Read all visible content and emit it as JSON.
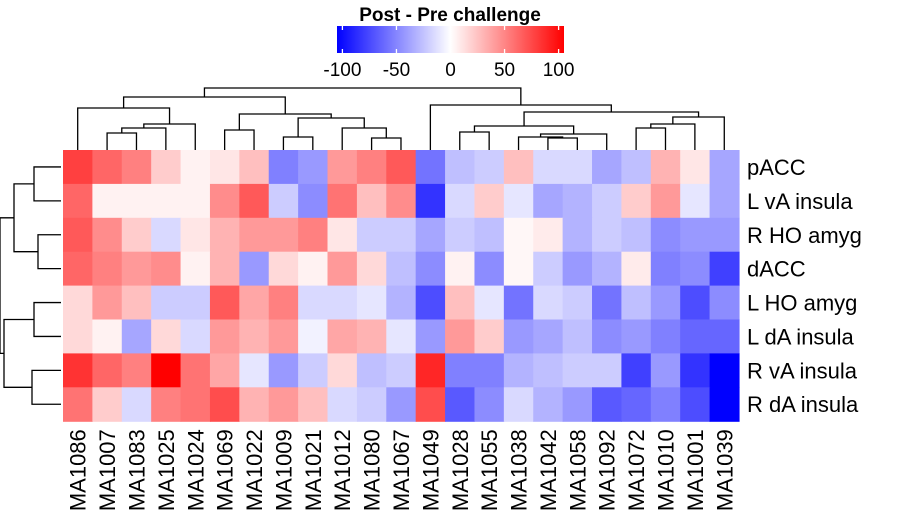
{
  "chart_data": {
    "type": "heatmap",
    "title": "Post - Pre challenge",
    "legend": {
      "title": "Post - Pre challenge",
      "ticks": [
        -100,
        -50,
        0,
        50,
        100
      ],
      "tick_labels": [
        "-100",
        "-50",
        "0",
        "50",
        "100"
      ],
      "range": [
        -105,
        105
      ],
      "colors": {
        "low": "#0000ff",
        "mid": "#ffffff",
        "high": "#ff0000"
      },
      "placement": "top-center"
    },
    "columns": [
      "MA1086",
      "MA1007",
      "MA1083",
      "MA1025",
      "MA1024",
      "MA1069",
      "MA1022",
      "MA1009",
      "MA1021",
      "MA1012",
      "MA1080",
      "MA1067",
      "MA1049",
      "MA1028",
      "MA1055",
      "MA1038",
      "MA1042",
      "MA1058",
      "MA1092",
      "MA1072",
      "MA1010",
      "MA1001",
      "MA1039"
    ],
    "rows": [
      "pACC",
      "L vA insula",
      "R HO amyg",
      "dACC",
      "L HO amyg",
      "L dA insula",
      "R vA insula",
      "R dA insula"
    ],
    "values": [
      [
        75,
        60,
        50,
        20,
        5,
        10,
        25,
        -50,
        -40,
        40,
        50,
        65,
        -55,
        -25,
        -20,
        25,
        -15,
        -15,
        -35,
        -25,
        30,
        10,
        -35
      ],
      [
        60,
        5,
        5,
        5,
        5,
        45,
        65,
        -20,
        -45,
        55,
        25,
        45,
        -80,
        -15,
        20,
        -10,
        -35,
        -30,
        -20,
        20,
        40,
        -10,
        -35
      ],
      [
        65,
        45,
        20,
        -15,
        10,
        30,
        40,
        40,
        50,
        10,
        -20,
        -20,
        -35,
        -20,
        -25,
        3,
        8,
        -30,
        -20,
        -25,
        -45,
        -40,
        -40
      ],
      [
        60,
        50,
        40,
        45,
        5,
        30,
        -40,
        15,
        5,
        40,
        15,
        -25,
        -45,
        5,
        -45,
        3,
        -20,
        -40,
        -30,
        8,
        -50,
        -45,
        -75
      ],
      [
        15,
        40,
        25,
        -20,
        -20,
        65,
        35,
        50,
        -15,
        -15,
        -10,
        -30,
        -70,
        25,
        -10,
        -55,
        -15,
        -20,
        -55,
        -25,
        -40,
        -70,
        -45
      ],
      [
        15,
        5,
        -35,
        15,
        -15,
        40,
        30,
        40,
        -5,
        35,
        30,
        -10,
        -40,
        40,
        20,
        -40,
        -35,
        -25,
        -45,
        -40,
        -50,
        -60,
        -60
      ],
      [
        80,
        60,
        50,
        100,
        55,
        35,
        -10,
        -40,
        -20,
        15,
        -25,
        -20,
        85,
        -50,
        -50,
        -30,
        -25,
        -20,
        -20,
        -75,
        -40,
        -80,
        -105
      ],
      [
        55,
        20,
        -15,
        50,
        55,
        70,
        30,
        40,
        25,
        -15,
        -20,
        -40,
        70,
        -65,
        -45,
        -15,
        -30,
        -40,
        -65,
        -60,
        -50,
        -70,
        -105
      ]
    ],
    "column_dendrogram": true,
    "row_dendrogram": true
  }
}
